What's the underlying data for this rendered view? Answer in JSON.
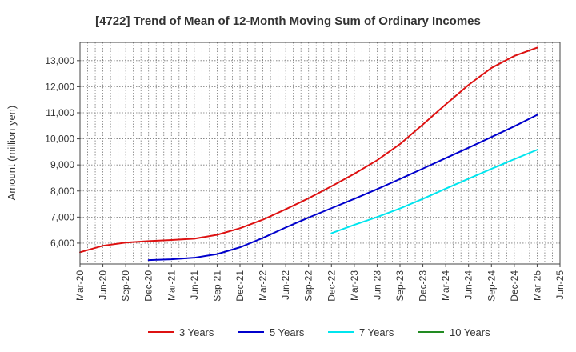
{
  "chart_data": {
    "type": "line",
    "title": "[4722]  Trend of Mean of 12-Month Moving Sum of Ordinary Incomes",
    "xlabel": "",
    "ylabel": "Amount (million yen)",
    "ylim": [
      5200,
      13700
    ],
    "yticks": [
      6000,
      7000,
      8000,
      9000,
      10000,
      11000,
      12000,
      13000
    ],
    "ytick_labels": [
      "6,000",
      "7,000",
      "8,000",
      "9,000",
      "10,000",
      "11,000",
      "12,000",
      "13,000"
    ],
    "categories": [
      "Mar-20",
      "Jun-20",
      "Sep-20",
      "Dec-20",
      "Mar-21",
      "Jun-21",
      "Sep-21",
      "Dec-21",
      "Mar-22",
      "Jun-22",
      "Sep-22",
      "Dec-22",
      "Mar-23",
      "Jun-23",
      "Sep-23",
      "Dec-23",
      "Mar-24",
      "Jun-24",
      "Sep-24",
      "Dec-24",
      "Mar-25",
      "Jun-25"
    ],
    "grid": true,
    "legend_position": "bottom",
    "series": [
      {
        "name": "3 Years",
        "color": "#dd1111",
        "values": [
          5650,
          5900,
          6020,
          6080,
          6120,
          6170,
          6320,
          6570,
          6900,
          7300,
          7720,
          8180,
          8660,
          9180,
          9800,
          10550,
          11320,
          12070,
          12720,
          13180,
          13500,
          null
        ]
      },
      {
        "name": "5 Years",
        "color": "#0000cc",
        "values": [
          null,
          null,
          null,
          5350,
          5380,
          5440,
          5580,
          5840,
          6200,
          6600,
          6980,
          7340,
          7700,
          8070,
          8460,
          8860,
          9260,
          9660,
          10070,
          10480,
          10920,
          null
        ]
      },
      {
        "name": "7 Years",
        "color": "#00e5ee",
        "values": [
          null,
          null,
          null,
          null,
          null,
          null,
          null,
          null,
          null,
          null,
          null,
          6380,
          6700,
          7000,
          7330,
          7700,
          8090,
          8470,
          8850,
          9220,
          9580,
          null
        ]
      },
      {
        "name": "10 Years",
        "color": "#228b22",
        "values": [
          null,
          null,
          null,
          null,
          null,
          null,
          null,
          null,
          null,
          null,
          null,
          null,
          null,
          null,
          null,
          null,
          null,
          null,
          null,
          null,
          null,
          null
        ]
      }
    ]
  }
}
